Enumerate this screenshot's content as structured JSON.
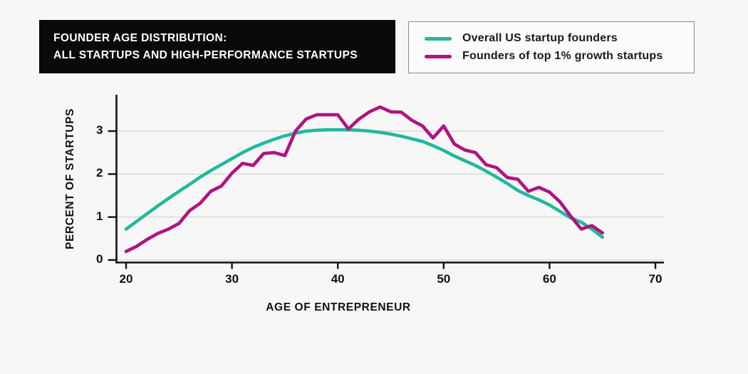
{
  "header": {
    "title_line1": "FOUNDER AGE DISTRIBUTION:",
    "title_line2": "ALL STARTUPS AND HIGH-PERFORMANCE STARTUPS"
  },
  "legend": {
    "items": [
      {
        "label": "Overall US startup founders",
        "color": "#23b89e",
        "swatch_name": "teal-line-swatch-icon"
      },
      {
        "label": "Founders of top 1% growth startups",
        "color": "#b01380",
        "swatch_name": "magenta-line-swatch-icon"
      }
    ]
  },
  "colors": {
    "background": "#f7f7f8",
    "grid": "#d8d8da",
    "axis": "#111111",
    "title_box_bg": "#0a0a0a",
    "title_text": "#ffffff",
    "legend_border": "#8c8c8c"
  },
  "chart_data": {
    "type": "line",
    "title": "FOUNDER AGE DISTRIBUTION: ALL STARTUPS AND HIGH-PERFORMANCE STARTUPS",
    "xlabel": "AGE OF ENTREPRENEUR",
    "ylabel": "PERCENT OF STARTUPS",
    "x_ticks": [
      20,
      30,
      40,
      50,
      60,
      70
    ],
    "y_ticks": [
      0,
      1,
      2,
      3
    ],
    "xlim": [
      19,
      70.8
    ],
    "ylim": [
      0,
      3.9
    ],
    "grid": "horizontal-only",
    "legend_position": "top-right-outside",
    "x": [
      20,
      21,
      22,
      23,
      24,
      25,
      26,
      27,
      28,
      29,
      30,
      31,
      32,
      33,
      34,
      35,
      36,
      37,
      38,
      39,
      40,
      41,
      42,
      43,
      44,
      45,
      46,
      47,
      48,
      49,
      50,
      51,
      52,
      53,
      54,
      55,
      56,
      57,
      58,
      59,
      60,
      61,
      62,
      63,
      64,
      65
    ],
    "series": [
      {
        "name": "Overall US startup founders",
        "color": "#23b89e",
        "values": [
          0.72,
          0.9,
          1.08,
          1.26,
          1.43,
          1.6,
          1.76,
          1.93,
          2.08,
          2.22,
          2.36,
          2.5,
          2.62,
          2.72,
          2.81,
          2.89,
          2.95,
          3.0,
          3.02,
          3.03,
          3.03,
          3.03,
          3.02,
          3.0,
          2.97,
          2.93,
          2.88,
          2.82,
          2.76,
          2.66,
          2.55,
          2.42,
          2.31,
          2.2,
          2.07,
          1.93,
          1.78,
          1.62,
          1.5,
          1.4,
          1.28,
          1.13,
          0.98,
          0.88,
          0.72,
          0.53
        ]
      },
      {
        "name": "Founders of top 1% growth startups",
        "color": "#b01380",
        "values": [
          0.2,
          0.32,
          0.48,
          0.62,
          0.72,
          0.85,
          1.15,
          1.32,
          1.6,
          1.72,
          2.02,
          2.25,
          2.2,
          2.48,
          2.5,
          2.43,
          3.0,
          3.28,
          3.38,
          3.38,
          3.38,
          3.05,
          3.28,
          3.45,
          3.56,
          3.45,
          3.44,
          3.25,
          3.12,
          2.84,
          3.12,
          2.7,
          2.56,
          2.5,
          2.22,
          2.15,
          1.92,
          1.88,
          1.6,
          1.69,
          1.58,
          1.35,
          1.02,
          0.72,
          0.8,
          0.63
        ]
      }
    ]
  }
}
